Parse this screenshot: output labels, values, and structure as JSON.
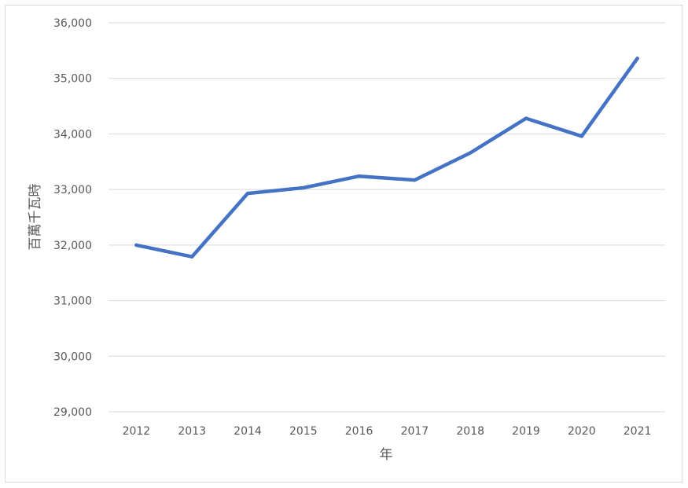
{
  "chart_data": {
    "type": "line",
    "title": "",
    "xlabel": "年",
    "ylabel": "百萬千瓦時",
    "categories": [
      "2012",
      "2013",
      "2014",
      "2015",
      "2016",
      "2017",
      "2018",
      "2019",
      "2020",
      "2021"
    ],
    "series": [
      {
        "values": [
          32000,
          31790,
          32930,
          33030,
          33240,
          33170,
          33660,
          34280,
          33960,
          35360
        ],
        "color": "#4472c4"
      }
    ],
    "ylim": [
      29000,
      36000
    ],
    "yticks": [
      29000,
      30000,
      31000,
      32000,
      33000,
      34000,
      35000,
      36000
    ],
    "ytick_labels": [
      "29,000",
      "30,000",
      "31,000",
      "32,000",
      "33,000",
      "34,000",
      "35,000",
      "36,000"
    ],
    "grid": true,
    "gridline_color": "#d9d9d9",
    "legend": "none"
  }
}
